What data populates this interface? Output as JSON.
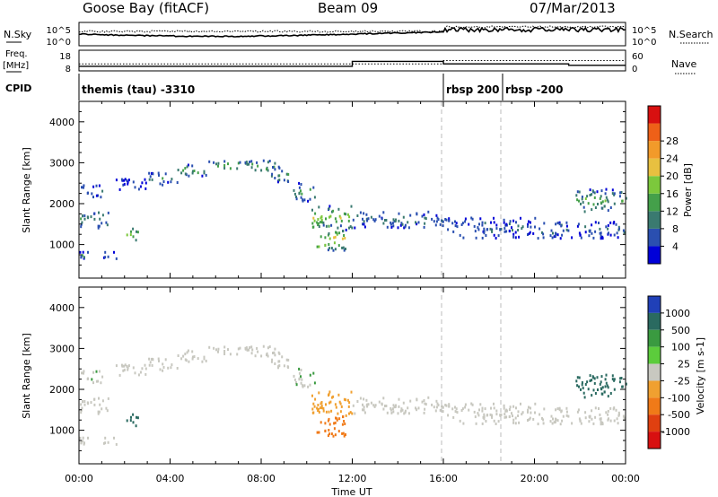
{
  "header": {
    "site": "Goose Bay (fitACF)",
    "beam": "Beam 09",
    "date": "07/Mar/2013"
  },
  "noise_panel": {
    "left_label": "N.Sky",
    "left_ticks": [
      "10^5",
      "10^0"
    ],
    "right_ticks": [
      "10^5",
      "10^0"
    ],
    "right_label": "N.Search"
  },
  "freq_panel": {
    "left_label_line1": "Freq.",
    "left_label_line2": "[MHz]",
    "left_ticks": [
      "18",
      "8"
    ],
    "right_ticks": [
      "60",
      "0"
    ],
    "right_label": "Nave",
    "freq_segments": [
      {
        "start": 0,
        "end": 12.0,
        "value": 10.2
      },
      {
        "start": 12.0,
        "end": 16.0,
        "value": 12.6
      },
      {
        "start": 16.0,
        "end": 21.5,
        "value": 11.4
      },
      {
        "start": 21.5,
        "end": 24.0,
        "value": 10.7
      }
    ],
    "nave_segments": [
      {
        "start": 0,
        "end": 16.0,
        "value": 20
      },
      {
        "start": 16.0,
        "end": 24.0,
        "value": 30
      }
    ]
  },
  "cpid": {
    "label": "CPID",
    "segments": [
      {
        "start": 0,
        "end": 16.0,
        "name": "themis (tau) -3310"
      },
      {
        "start": 16.0,
        "end": 18.6,
        "name": "rbsp 200"
      },
      {
        "start": 18.6,
        "end": 24.0,
        "name": "rbsp -200"
      }
    ]
  },
  "x_axis": {
    "label": "Time UT",
    "ticks": [
      "00:00",
      "04:00",
      "08:00",
      "12:00",
      "16:00",
      "20:00",
      "00:00"
    ]
  },
  "power_panel": {
    "ylabel": "Slant Range [km]",
    "yticks": [
      "1000",
      "2000",
      "3000",
      "4000"
    ],
    "cbar_label": "Power [dB]",
    "cbar_ticks": [
      "4",
      "8",
      "12",
      "16",
      "20",
      "24",
      "28"
    ],
    "cbar_colors": [
      "#0000d8",
      "#2a4fb0",
      "#3a7a70",
      "#44a04a",
      "#7cc83c",
      "#e8c040",
      "#f29a2a",
      "#ee6018",
      "#d81010"
    ]
  },
  "velocity_panel": {
    "ylabel": "Slant Range [km]",
    "yticks": [
      "1000",
      "2000",
      "3000",
      "4000"
    ],
    "cbar_label": "Velocity [m s-1]",
    "cbar_ticks": [
      "1000",
      "500",
      "100",
      "25",
      "-25",
      "-100",
      "-500",
      "-1000"
    ],
    "cbar_colors": [
      "#2040b8",
      "#2a6a60",
      "#3a9a40",
      "#5ccc3c",
      "#c8c8c0",
      "#f0a030",
      "#f07a18",
      "#e04010",
      "#d81010"
    ]
  },
  "chart_data": {
    "type": "heatmap",
    "title": "Goose Bay (fitACF)  Beam 09  07/Mar/2013",
    "xlabel": "Time UT",
    "ylabel": "Slant Range [km]",
    "xlim_hours": [
      0,
      24
    ],
    "ylim_km": [
      180,
      4500
    ],
    "power_scale_db": [
      0,
      30
    ],
    "velocity_scale_ms": [
      -1000,
      1000
    ],
    "scatter_regions": [
      {
        "t_start": 0.0,
        "t_end": 1.3,
        "r_min": 1400,
        "r_max": 1800,
        "power_db": 10,
        "velocity_ms": 0
      },
      {
        "t_start": 0.0,
        "t_end": 1.8,
        "r_min": 650,
        "r_max": 820,
        "power_db": 11,
        "velocity_ms": 0
      },
      {
        "t_start": 0.0,
        "t_end": 1.0,
        "r_min": 2150,
        "r_max": 2450,
        "power_db": 7,
        "velocity_ms": 20
      },
      {
        "t_start": 1.6,
        "t_end": 3.1,
        "r_min": 2300,
        "r_max": 2600,
        "power_db": 5,
        "velocity_ms": 0
      },
      {
        "t_start": 2.0,
        "t_end": 2.6,
        "r_min": 1100,
        "r_max": 1400,
        "power_db": 14,
        "velocity_ms": 120
      },
      {
        "t_start": 3.0,
        "t_end": 4.3,
        "r_min": 2450,
        "r_max": 2750,
        "power_db": 9,
        "velocity_ms": 0
      },
      {
        "t_start": 4.3,
        "t_end": 5.6,
        "r_min": 2650,
        "r_max": 2950,
        "power_db": 11,
        "velocity_ms": 0
      },
      {
        "t_start": 5.6,
        "t_end": 8.6,
        "r_min": 2800,
        "r_max": 3050,
        "power_db": 13,
        "velocity_ms": 0
      },
      {
        "t_start": 8.4,
        "t_end": 9.4,
        "r_min": 2500,
        "r_max": 2900,
        "power_db": 9,
        "velocity_ms": 0
      },
      {
        "t_start": 9.4,
        "t_end": 10.4,
        "r_min": 2050,
        "r_max": 2500,
        "power_db": 12,
        "velocity_ms": 20
      },
      {
        "t_start": 10.2,
        "t_end": 12.0,
        "r_min": 1350,
        "r_max": 1950,
        "power_db": 15,
        "velocity_ms": -60
      },
      {
        "t_start": 10.4,
        "t_end": 11.8,
        "r_min": 850,
        "r_max": 1350,
        "power_db": 19,
        "velocity_ms": -300
      },
      {
        "t_start": 12.0,
        "t_end": 16.0,
        "r_min": 1400,
        "r_max": 1800,
        "power_db": 7,
        "velocity_ms": 0
      },
      {
        "t_start": 16.0,
        "t_end": 20.0,
        "r_min": 1150,
        "r_max": 1650,
        "power_db": 6,
        "velocity_ms": 0
      },
      {
        "t_start": 20.0,
        "t_end": 24.0,
        "r_min": 1150,
        "r_max": 1550,
        "power_db": 7,
        "velocity_ms": 0
      },
      {
        "t_start": 21.8,
        "t_end": 24.0,
        "r_min": 1800,
        "r_max": 2350,
        "power_db": 12,
        "velocity_ms": 150
      }
    ]
  }
}
